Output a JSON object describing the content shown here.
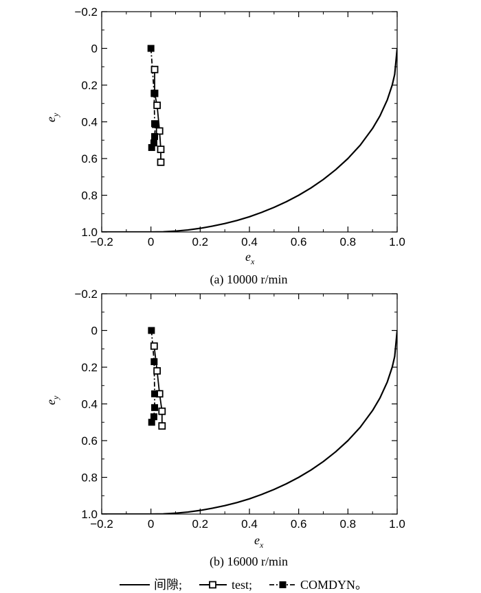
{
  "chart_data": [
    {
      "type": "line",
      "caption": "(a) 10000 r/min",
      "xlabel": "e",
      "xlabel_sub": "x",
      "ylabel": "e",
      "ylabel_sub": "y",
      "xlim": [
        -0.2,
        1.0
      ],
      "ylim": [
        -0.2,
        1.0
      ],
      "y_inverted": true,
      "xticks": [
        "−0.2",
        "0",
        "0.2",
        "0.4",
        "0.6",
        "0.8",
        "1.0"
      ],
      "yticks": [
        "−0.2",
        "0",
        "0.2",
        "0.4",
        "0.6",
        "0.8",
        "1.0"
      ],
      "series": [
        {
          "name": "间隙",
          "style": "solid",
          "marker": "none",
          "x": [
            -0.2,
            0.0,
            0.05,
            0.1,
            0.15,
            0.2,
            0.25,
            0.3,
            0.35,
            0.4,
            0.45,
            0.5,
            0.55,
            0.6,
            0.65,
            0.7,
            0.75,
            0.8,
            0.85,
            0.9,
            0.93,
            0.96,
            0.98,
            0.99,
            1.0
          ],
          "y": [
            1.0,
            1.0,
            0.999,
            0.995,
            0.989,
            0.98,
            0.968,
            0.954,
            0.937,
            0.917,
            0.893,
            0.866,
            0.835,
            0.8,
            0.76,
            0.714,
            0.661,
            0.6,
            0.527,
            0.436,
            0.368,
            0.28,
            0.199,
            0.141,
            0.0
          ]
        },
        {
          "name": "test",
          "style": "solid",
          "marker": "open-square",
          "x": [
            0.015,
            0.015,
            0.025,
            0.035,
            0.04,
            0.04
          ],
          "y": [
            0.115,
            0.245,
            0.31,
            0.45,
            0.55,
            0.62
          ]
        },
        {
          "name": "COMDYN",
          "style": "dashdot",
          "marker": "filled-square",
          "x": [
            0.0,
            0.013,
            0.015,
            0.018,
            0.015,
            0.012,
            0.003
          ],
          "y": [
            0.0,
            0.245,
            0.41,
            0.415,
            0.48,
            0.515,
            0.54
          ]
        }
      ]
    },
    {
      "type": "line",
      "caption": "(b) 16000 r/min",
      "xlabel": "e",
      "xlabel_sub": "x",
      "ylabel": "e",
      "ylabel_sub": "y",
      "xlim": [
        -0.2,
        1.0
      ],
      "ylim": [
        -0.2,
        1.0
      ],
      "y_inverted": true,
      "xticks": [
        "−0.2",
        "0",
        "0.2",
        "0.4",
        "0.6",
        "0.8",
        "1.0"
      ],
      "yticks": [
        "−0.2",
        "0",
        "0.2",
        "0.4",
        "0.6",
        "0.8",
        "1.0"
      ],
      "series": [
        {
          "name": "间隙",
          "style": "solid",
          "marker": "none",
          "x": [
            -0.2,
            0.0,
            0.05,
            0.1,
            0.15,
            0.2,
            0.25,
            0.3,
            0.35,
            0.4,
            0.45,
            0.5,
            0.55,
            0.6,
            0.65,
            0.7,
            0.75,
            0.8,
            0.85,
            0.9,
            0.93,
            0.96,
            0.98,
            0.99,
            1.0
          ],
          "y": [
            1.0,
            1.0,
            0.999,
            0.995,
            0.989,
            0.98,
            0.968,
            0.954,
            0.937,
            0.917,
            0.893,
            0.866,
            0.835,
            0.8,
            0.76,
            0.714,
            0.661,
            0.6,
            0.527,
            0.436,
            0.368,
            0.28,
            0.199,
            0.141,
            0.0
          ]
        },
        {
          "name": "test",
          "style": "solid",
          "marker": "open-square",
          "x": [
            0.013,
            0.025,
            0.035,
            0.045,
            0.045
          ],
          "y": [
            0.085,
            0.22,
            0.345,
            0.44,
            0.52
          ]
        },
        {
          "name": "COMDYN",
          "style": "dashdot",
          "marker": "filled-square",
          "x": [
            0.002,
            0.013,
            0.015,
            0.015,
            0.012,
            0.003
          ],
          "y": [
            0.0,
            0.17,
            0.345,
            0.42,
            0.47,
            0.5
          ]
        }
      ]
    }
  ],
  "legend": {
    "items": [
      {
        "label": "间隙;",
        "style": "solid",
        "marker": "none"
      },
      {
        "label": "test;",
        "style": "solid",
        "marker": "open-square"
      },
      {
        "label": "COMDYN。",
        "style": "dashdot",
        "marker": "filled-square"
      }
    ]
  }
}
